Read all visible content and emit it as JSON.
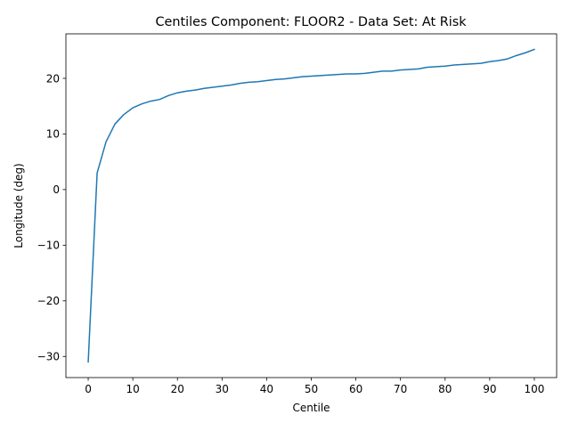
{
  "chart_data": {
    "type": "line",
    "title": "Centiles Component: FLOOR2 - Data Set: At Risk",
    "xlabel": "Centile",
    "ylabel": "Longitude (deg)",
    "xlim": [
      -5,
      105
    ],
    "ylim": [
      -33.8,
      28.0
    ],
    "xticks": [
      0,
      10,
      20,
      30,
      40,
      50,
      60,
      70,
      80,
      90,
      100
    ],
    "yticks": [
      -30,
      -20,
      -10,
      0,
      10,
      20
    ],
    "ytick_labels": [
      "−30",
      "−20",
      "−10",
      "0",
      "10",
      "20"
    ],
    "grid": false,
    "line_color": "#1f77b4",
    "series": [
      {
        "x": [
          0,
          2,
          4,
          6,
          8,
          10,
          12,
          14,
          16,
          18,
          20,
          22,
          24,
          26,
          28,
          30,
          32,
          34,
          36,
          38,
          40,
          42,
          44,
          46,
          48,
          50,
          52,
          54,
          56,
          58,
          60,
          62,
          64,
          66,
          68,
          70,
          72,
          74,
          76,
          78,
          80,
          82,
          84,
          86,
          88,
          90,
          92,
          94,
          96,
          98,
          100
        ],
        "y": [
          -31.0,
          3.0,
          8.6,
          11.8,
          13.5,
          14.7,
          15.4,
          15.9,
          16.2,
          16.9,
          17.4,
          17.7,
          17.9,
          18.2,
          18.4,
          18.6,
          18.8,
          19.1,
          19.3,
          19.4,
          19.6,
          19.8,
          19.9,
          20.1,
          20.3,
          20.4,
          20.5,
          20.6,
          20.7,
          20.8,
          20.8,
          20.9,
          21.1,
          21.3,
          21.3,
          21.5,
          21.6,
          21.7,
          22.0,
          22.1,
          22.2,
          22.4,
          22.5,
          22.6,
          22.7,
          23.0,
          23.2,
          23.5,
          24.1,
          24.6,
          25.2
        ]
      }
    ]
  }
}
